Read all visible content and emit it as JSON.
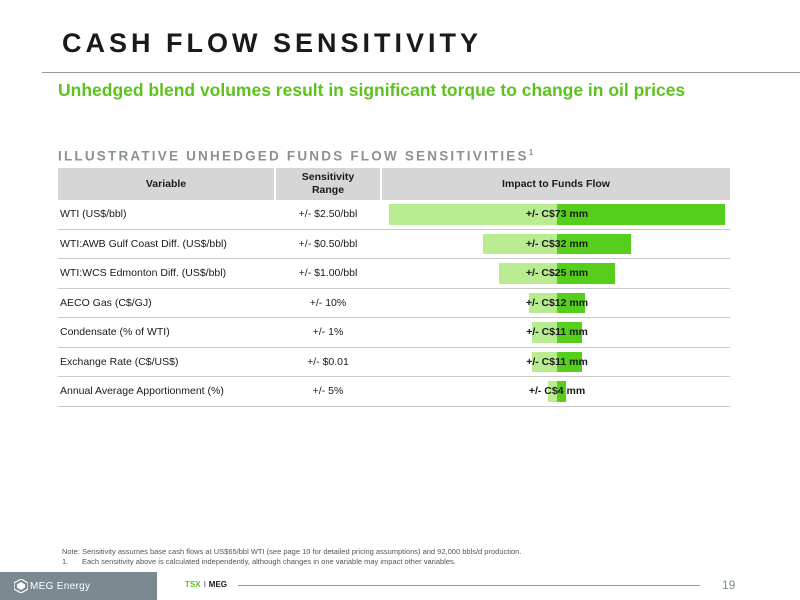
{
  "slide": {
    "title": "CASH FLOW SENSITIVITY",
    "subtitle": "Unhedged blend volumes result in significant torque to change in oil prices",
    "section_heading": "ILLUSTRATIVE UNHEDGED FUNDS FLOW SENSITIVITIES",
    "section_heading_footnote": "1"
  },
  "table": {
    "headers": {
      "variable": "Variable",
      "range": "Sensitivity Range",
      "impact": "Impact to Funds Flow"
    },
    "max_impact": 73,
    "rows": [
      {
        "variable": "WTI (US$/bbl)",
        "range": "+/- $2.50/bbl",
        "impact_label": "+/- C$73 mm",
        "impact": 73
      },
      {
        "variable": "WTI:AWB Gulf Coast Diff. (US$/bbl)",
        "range": "+/- $0.50/bbl",
        "impact_label": "+/- C$32 mm",
        "impact": 32
      },
      {
        "variable": "WTI:WCS Edmonton Diff. (US$/bbl)",
        "range": "+/- $1.00/bbl",
        "impact_label": "+/- C$25 mm",
        "impact": 25
      },
      {
        "variable": "AECO Gas (C$/GJ)",
        "range": "+/- 10%",
        "impact_label": "+/- C$12 mm",
        "impact": 12
      },
      {
        "variable": "Condensate (% of WTI)",
        "range": "+/- 1%",
        "impact_label": "+/- C$11 mm",
        "impact": 11
      },
      {
        "variable": "Exchange Rate (C$/US$)",
        "range": "+/- $0.01",
        "impact_label": "+/- C$11 mm",
        "impact": 11
      },
      {
        "variable": "Annual Average Apportionment (%)",
        "range": "+/- 5%",
        "impact_label": "+/- C$4 mm",
        "impact": 4
      }
    ]
  },
  "colors": {
    "bar_dark": "#56cf1c",
    "bar_light": "#b9ec91",
    "accent": "#5cc31e"
  },
  "notes": {
    "note": "Note: Sensitivity assumes base cash flows at US$65/bbl WTI (see page 10 for detailed pricing assumptions) and 92,000 bbls/d production.",
    "footnote_number": "1.",
    "footnote": "Each sensitivity above is calculated independently, although changes in one variable may impact other variables."
  },
  "footer": {
    "logo_text": "MEG Energy",
    "ticker_exchange": "TSX",
    "ticker_separator": "I",
    "ticker_symbol": "MEG",
    "page_number": "19"
  }
}
